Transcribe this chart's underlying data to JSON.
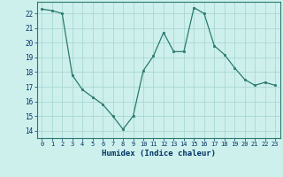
{
  "x": [
    0,
    1,
    2,
    3,
    4,
    5,
    6,
    7,
    8,
    9,
    10,
    11,
    12,
    13,
    14,
    15,
    16,
    17,
    18,
    19,
    20,
    21,
    22,
    23
  ],
  "y": [
    22.3,
    22.2,
    22.0,
    17.8,
    16.8,
    16.3,
    15.8,
    15.0,
    14.1,
    15.0,
    18.1,
    19.1,
    20.7,
    19.4,
    19.4,
    22.4,
    22.0,
    19.8,
    19.2,
    18.3,
    17.5,
    17.1,
    17.3,
    17.1
  ],
  "line_color": "#2a7a70",
  "marker": "s",
  "marker_size": 2,
  "bg_color": "#cef0ec",
  "grid_color": "#aad8d4",
  "xlabel": "Humidex (Indice chaleur)",
  "ylim": [
    13.5,
    22.8
  ],
  "xlim": [
    -0.5,
    23.5
  ],
  "yticks": [
    14,
    15,
    16,
    17,
    18,
    19,
    20,
    21,
    22
  ],
  "xticks": [
    0,
    1,
    2,
    3,
    4,
    5,
    6,
    7,
    8,
    9,
    10,
    11,
    12,
    13,
    14,
    15,
    16,
    17,
    18,
    19,
    20,
    21,
    22,
    23
  ],
  "xlabel_color": "#003366",
  "tick_color": "#003366",
  "spine_color": "#2a7a70"
}
